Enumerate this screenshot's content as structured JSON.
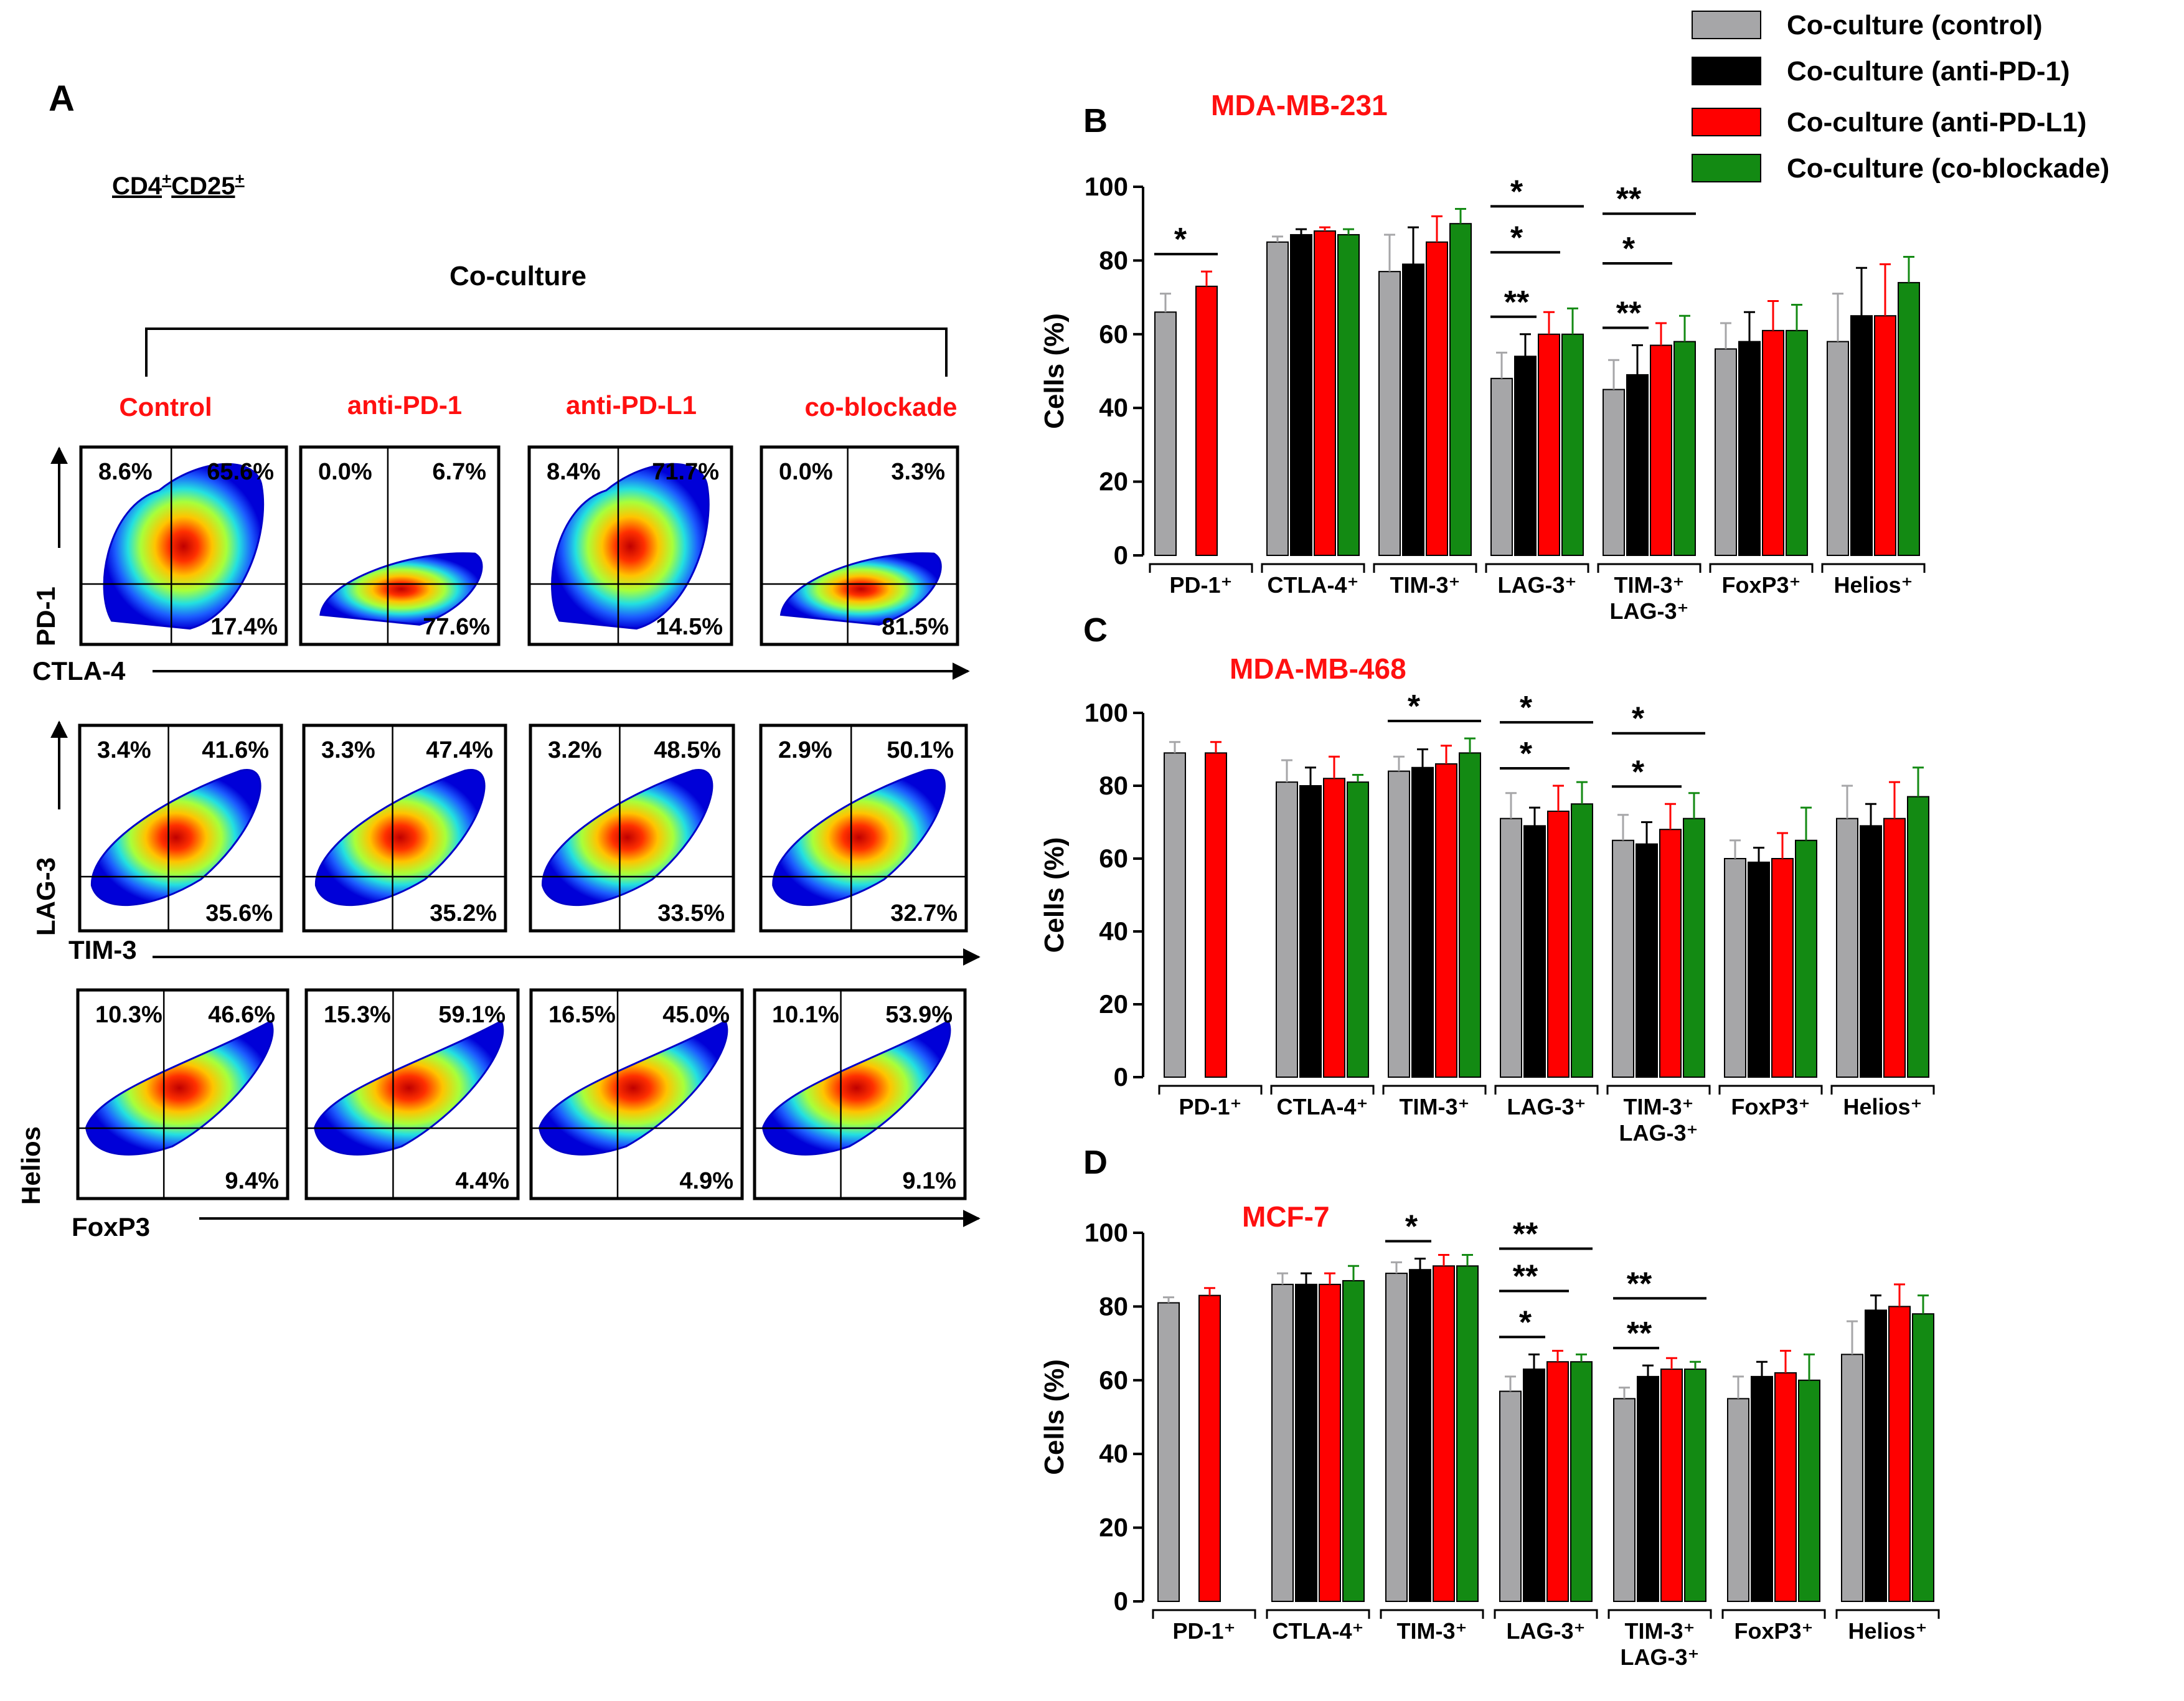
{
  "legend": [
    {
      "label": "Co-culture (control)",
      "color": "#a6a6a8"
    },
    {
      "label": "Co-culture (anti-PD-1)",
      "color": "#000000"
    },
    {
      "label": "Co-culture (anti-PD-L1)",
      "color": "#ff0000"
    },
    {
      "label": "Co-culture (co-blockade)",
      "color": "#138a13"
    }
  ],
  "panel_a": {
    "letter": "A",
    "population": "CD4",
    "population_sup1": "+",
    "population_part2": "CD25",
    "population_sup2": "+",
    "group_label": "Co-culture",
    "conditions": [
      "Control",
      "anti-PD-1",
      "anti-PD-L1",
      "co-blockade"
    ],
    "rows": [
      {
        "y_marker": "PD-1",
        "x_marker": "CTLA-4",
        "plots": [
          {
            "ul": "8.6%",
            "ur": "65.6%",
            "lr": "17.4%",
            "shape": "wide"
          },
          {
            "ul": "0.0%",
            "ur": "6.7%",
            "lr": "77.6%",
            "shape": "flat"
          },
          {
            "ul": "8.4%",
            "ur": "71.7%",
            "lr": "14.5%",
            "shape": "wide"
          },
          {
            "ul": "0.0%",
            "ur": "3.3%",
            "lr": "81.5%",
            "shape": "flat"
          }
        ]
      },
      {
        "y_marker": "LAG-3",
        "x_marker": "TIM-3",
        "plots": [
          {
            "ul": "3.4%",
            "ur": "41.6%",
            "lr": "35.6%",
            "shape": "diag"
          },
          {
            "ul": "3.3%",
            "ur": "47.4%",
            "lr": "35.2%",
            "shape": "diag"
          },
          {
            "ul": "3.2%",
            "ur": "48.5%",
            "lr": "33.5%",
            "shape": "diag"
          },
          {
            "ul": "2.9%",
            "ur": "50.1%",
            "lr": "32.7%",
            "shape": "diag"
          }
        ]
      },
      {
        "y_marker": "Helios",
        "x_marker": "FoxP3",
        "plots": [
          {
            "ul": "10.3%",
            "ur": "46.6%",
            "lr": "9.4%",
            "shape": "thin"
          },
          {
            "ul": "15.3%",
            "ur": "59.1%",
            "lr": "4.4%",
            "shape": "thin"
          },
          {
            "ul": "16.5%",
            "ur": "45.0%",
            "lr": "4.9%",
            "shape": "thin"
          },
          {
            "ul": "10.1%",
            "ur": "53.9%",
            "lr": "9.1%",
            "shape": "thin"
          }
        ]
      }
    ]
  },
  "chart_data": [
    {
      "type": "bar",
      "letter": "B",
      "title": "MDA-MB-231",
      "ylabel": "Cells (%)",
      "ylim": [
        0,
        100
      ],
      "yticks": [
        0,
        20,
        40,
        60,
        80,
        100
      ],
      "categories": [
        "PD-1⁺",
        "CTLA-4⁺",
        "TIM-3⁺",
        "LAG-3⁺",
        "TIM-3⁺|LAG-3⁺",
        "FoxP3⁺",
        "Helios⁺"
      ],
      "series": [
        {
          "name": "Co-culture (control)",
          "values": [
            66,
            85,
            77,
            48,
            45,
            56,
            58
          ],
          "errors": [
            5,
            1.5,
            10,
            7,
            8,
            7,
            13
          ]
        },
        {
          "name": "Co-culture (anti-PD-1)",
          "values": [
            null,
            87,
            79,
            54,
            49,
            58,
            65
          ],
          "errors": [
            null,
            1.5,
            10,
            6,
            8,
            8,
            13
          ]
        },
        {
          "name": "Co-culture (anti-PD-L1)",
          "values": [
            73,
            88,
            85,
            60,
            57,
            61,
            65
          ],
          "errors": [
            4,
            1,
            7,
            6,
            6,
            8,
            14
          ]
        },
        {
          "name": "Co-culture (co-blockade)",
          "values": [
            null,
            87,
            90,
            60,
            58,
            61,
            74
          ],
          "errors": [
            null,
            1.5,
            4,
            7,
            7,
            7,
            7
          ]
        }
      ],
      "significance": [
        {
          "category": 0,
          "from": 0,
          "to": 2,
          "label": "*",
          "level": 1
        },
        {
          "category": 3,
          "from": 0,
          "to": 1,
          "label": "**",
          "level": 1
        },
        {
          "category": 3,
          "from": 0,
          "to": 2,
          "label": "*",
          "level": 2
        },
        {
          "category": 3,
          "from": 0,
          "to": 3,
          "label": "*",
          "level": 3
        },
        {
          "category": 4,
          "from": 0,
          "to": 1,
          "label": "**",
          "level": 1
        },
        {
          "category": 4,
          "from": 0,
          "to": 2,
          "label": "*",
          "level": 2
        },
        {
          "category": 4,
          "from": 0,
          "to": 3,
          "label": "**",
          "level": 3
        }
      ]
    },
    {
      "type": "bar",
      "letter": "C",
      "title": "MDA-MB-468",
      "ylabel": "Cells (%)",
      "ylim": [
        0,
        100
      ],
      "yticks": [
        0,
        20,
        40,
        60,
        80,
        100
      ],
      "categories": [
        "PD-1⁺",
        "CTLA-4⁺",
        "TIM-3⁺",
        "LAG-3⁺",
        "TIM-3⁺|LAG-3⁺",
        "FoxP3⁺",
        "Helios⁺"
      ],
      "series": [
        {
          "name": "Co-culture (control)",
          "values": [
            89,
            81,
            84,
            71,
            65,
            60,
            71
          ],
          "errors": [
            3,
            6,
            4,
            7,
            7,
            5,
            9
          ]
        },
        {
          "name": "Co-culture (anti-PD-1)",
          "values": [
            null,
            80,
            85,
            69,
            64,
            59,
            69
          ],
          "errors": [
            null,
            5,
            5,
            5,
            6,
            4,
            6
          ]
        },
        {
          "name": "Co-culture (anti-PD-L1)",
          "values": [
            89,
            82,
            86,
            73,
            68,
            60,
            71
          ],
          "errors": [
            3,
            6,
            5,
            7,
            7,
            7,
            10
          ]
        },
        {
          "name": "Co-culture (co-blockade)",
          "values": [
            null,
            81,
            89,
            75,
            71,
            65,
            77
          ],
          "errors": [
            null,
            2,
            4,
            6,
            7,
            9,
            8
          ]
        }
      ],
      "significance": [
        {
          "category": 2,
          "from": 0,
          "to": 3,
          "label": "*",
          "level": 1
        },
        {
          "category": 3,
          "from": 0,
          "to": 2,
          "label": "*",
          "level": 1
        },
        {
          "category": 3,
          "from": 0,
          "to": 3,
          "label": "*",
          "level": 2
        },
        {
          "category": 4,
          "from": 0,
          "to": 2,
          "label": "*",
          "level": 1
        },
        {
          "category": 4,
          "from": 0,
          "to": 3,
          "label": "*",
          "level": 2
        }
      ]
    },
    {
      "type": "bar",
      "letter": "D",
      "title": "MCF-7",
      "ylabel": "Cells (%)",
      "ylim": [
        0,
        100
      ],
      "yticks": [
        0,
        20,
        40,
        60,
        80,
        100
      ],
      "categories": [
        "PD-1⁺",
        "CTLA-4⁺",
        "TIM-3⁺",
        "LAG-3⁺",
        "TIM-3⁺|LAG-3⁺",
        "FoxP3⁺",
        "Helios⁺"
      ],
      "series": [
        {
          "name": "Co-culture (control)",
          "values": [
            81,
            86,
            89,
            57,
            55,
            55,
            67
          ],
          "errors": [
            1.5,
            3,
            3,
            4,
            3,
            6,
            9
          ]
        },
        {
          "name": "Co-culture (anti-PD-1)",
          "values": [
            null,
            86,
            90,
            63,
            61,
            61,
            79
          ],
          "errors": [
            null,
            3,
            3,
            4,
            3,
            4,
            4
          ]
        },
        {
          "name": "Co-culture (anti-PD-L1)",
          "values": [
            83,
            86,
            91,
            65,
            63,
            62,
            80
          ],
          "errors": [
            2,
            3,
            3,
            3,
            3,
            6,
            6
          ]
        },
        {
          "name": "Co-culture (co-blockade)",
          "values": [
            null,
            87,
            91,
            65,
            63,
            60,
            78
          ],
          "errors": [
            null,
            4,
            3,
            2,
            2,
            7,
            5
          ]
        }
      ],
      "significance": [
        {
          "category": 2,
          "from": 0,
          "to": 1,
          "label": "*",
          "level": 1
        },
        {
          "category": 3,
          "from": 0,
          "to": 1,
          "label": "*",
          "level": 1
        },
        {
          "category": 3,
          "from": 0,
          "to": 2,
          "label": "**",
          "level": 2
        },
        {
          "category": 3,
          "from": 0,
          "to": 3,
          "label": "**",
          "level": 3
        },
        {
          "category": 4,
          "from": 0,
          "to": 1,
          "label": "**",
          "level": 1
        },
        {
          "category": 4,
          "from": 0,
          "to": 3,
          "label": "**",
          "level": 2
        }
      ]
    }
  ]
}
